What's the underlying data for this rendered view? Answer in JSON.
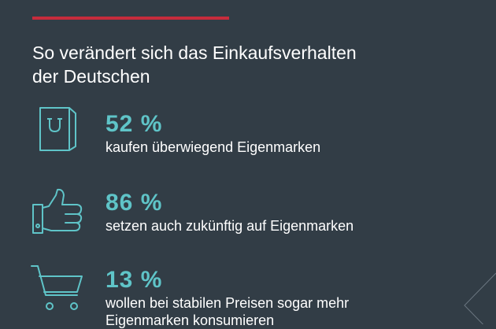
{
  "header": {
    "title_fragment": "",
    "accent_color": "#c62c3c"
  },
  "subtitle_line1": "So verändert sich das Einkaufsverhalten",
  "subtitle_line2": "der Deutschen",
  "stats": [
    {
      "icon": "shopping-bag-icon",
      "percent": "52 %",
      "desc_line1": "kaufen überwiegend Eigenmarken",
      "desc_line2": ""
    },
    {
      "icon": "thumbs-up-icon",
      "percent": "86 %",
      "desc_line1": "setzen auch zukünftig auf Eigenmarken",
      "desc_line2": ""
    },
    {
      "icon": "shopping-cart-icon",
      "percent": "13 %",
      "desc_line1": "wollen bei stabilen Preisen sogar mehr",
      "desc_line2": "Eigenmarken konsumieren"
    }
  ],
  "colors": {
    "background": "#323d46",
    "accent": "#5fc4c8",
    "text": "#ffffff"
  }
}
